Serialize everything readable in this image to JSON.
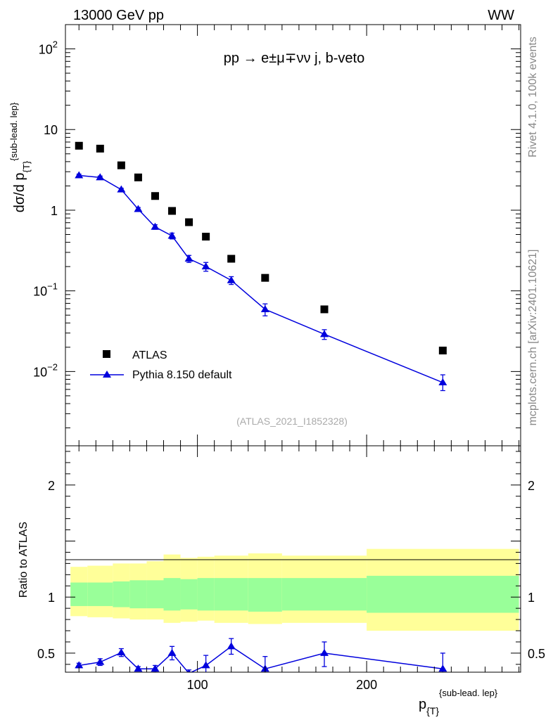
{
  "header": {
    "left": "13000 GeV pp",
    "right": "WW"
  },
  "side_texts": {
    "rivet": "Rivet 4.1.0,  100k events",
    "mcplots": "mcplots.cern.ch [arXiv:2401.10621]"
  },
  "colors": {
    "mc": "#0000dd",
    "data": "#000000",
    "band_inner": "#99ff99",
    "band_outer": "#ffff99"
  },
  "chart_data": [
    {
      "type": "scatter",
      "title": "pp → e±μ∓νν j, b-veto",
      "ylabel": "dσ/d p_{T}^{sub-lead. lep}",
      "ylabel_main": "dσ/d p",
      "ylabel_sub": "{T}",
      "ylabel_sup": "{sub-lead. lep}",
      "yscale": "log",
      "ylim": [
        0.0012,
        200
      ],
      "xlim": [
        22,
        291
      ],
      "watermark": "(ATLAS_2021_I1852328)",
      "legend_position": "lower-left",
      "yticks": [
        {
          "value": 100,
          "base": "10",
          "exp": "2"
        },
        {
          "value": 10,
          "base": "10",
          "exp": ""
        },
        {
          "value": 1,
          "base": "1",
          "exp": ""
        },
        {
          "value": 0.1,
          "base": "10",
          "exp": "−1"
        },
        {
          "value": 0.01,
          "base": "10",
          "exp": "−2"
        }
      ],
      "series": [
        {
          "name": "ATLAS",
          "marker": "square",
          "x": [
            30,
            42.5,
            55,
            65,
            75,
            85,
            95,
            105,
            120,
            140,
            175,
            245
          ],
          "y": [
            6.3,
            5.8,
            3.6,
            2.55,
            1.5,
            0.98,
            0.71,
            0.47,
            0.25,
            0.145,
            0.059,
            0.0182
          ]
        },
        {
          "name": "Pythia 8.150 default",
          "marker": "triangle",
          "x": [
            30,
            42.5,
            55,
            65,
            75,
            85,
            95,
            105,
            120,
            140,
            175,
            245
          ],
          "y": [
            2.7,
            2.55,
            1.8,
            1.03,
            0.62,
            0.48,
            0.25,
            0.2,
            0.135,
            0.059,
            0.029,
            0.0073
          ],
          "y_err_low": [
            0.1,
            0.1,
            0.07,
            0.05,
            0.04,
            0.04,
            0.025,
            0.025,
            0.015,
            0.01,
            0.004,
            0.0015
          ],
          "y_err_high": [
            0.1,
            0.1,
            0.07,
            0.05,
            0.04,
            0.04,
            0.025,
            0.025,
            0.015,
            0.01,
            0.004,
            0.0018
          ]
        }
      ]
    },
    {
      "type": "line",
      "ylabel": "Ratio to ATLAS",
      "xlabel": "p_{T}^{sub-lead. lep}",
      "xlabel_main": "p",
      "xlabel_sub": "{T}",
      "xlabel_sup": "{sub-lead. lep}",
      "ylim": [
        0.33,
        2.35
      ],
      "xlim": [
        22,
        291
      ],
      "xticks": [
        100,
        200
      ],
      "yticks": [
        0.5,
        1,
        2
      ],
      "band_edges": [
        25,
        35,
        50,
        60,
        70,
        80,
        90,
        100,
        110,
        130,
        150,
        200,
        290
      ],
      "band_inner": [
        [
          0.92,
          1.13
        ],
        [
          0.92,
          1.13
        ],
        [
          0.91,
          1.14
        ],
        [
          0.9,
          1.15
        ],
        [
          0.9,
          1.15
        ],
        [
          0.88,
          1.17
        ],
        [
          0.89,
          1.16
        ],
        [
          0.88,
          1.17
        ],
        [
          0.88,
          1.17
        ],
        [
          0.87,
          1.17
        ],
        [
          0.88,
          1.17
        ],
        [
          0.86,
          1.19
        ]
      ],
      "band_outer": [
        [
          0.83,
          1.27
        ],
        [
          0.82,
          1.28
        ],
        [
          0.81,
          1.3
        ],
        [
          0.8,
          1.3
        ],
        [
          0.8,
          1.32
        ],
        [
          0.77,
          1.38
        ],
        [
          0.78,
          1.35
        ],
        [
          0.79,
          1.36
        ],
        [
          0.77,
          1.37
        ],
        [
          0.76,
          1.39
        ],
        [
          0.77,
          1.37
        ],
        [
          0.7,
          1.43
        ]
      ],
      "series": [
        {
          "name": "Pythia 8.150 default / ATLAS",
          "x": [
            30,
            42.5,
            55,
            65,
            75,
            85,
            95,
            105,
            120,
            140,
            175,
            245
          ],
          "y": [
            0.39,
            0.42,
            0.505,
            0.36,
            0.36,
            0.5,
            0.32,
            0.39,
            0.56,
            0.36,
            0.5,
            0.36
          ],
          "y_err_low": [
            0.02,
            0.03,
            0.035,
            0.02,
            0.03,
            0.06,
            0.03,
            0.09,
            0.07,
            0.1,
            0.12,
            0.14
          ],
          "y_err_high": [
            0.02,
            0.03,
            0.035,
            0.02,
            0.03,
            0.06,
            0.03,
            0.09,
            0.07,
            0.11,
            0.1,
            0.14
          ]
        }
      ]
    }
  ]
}
